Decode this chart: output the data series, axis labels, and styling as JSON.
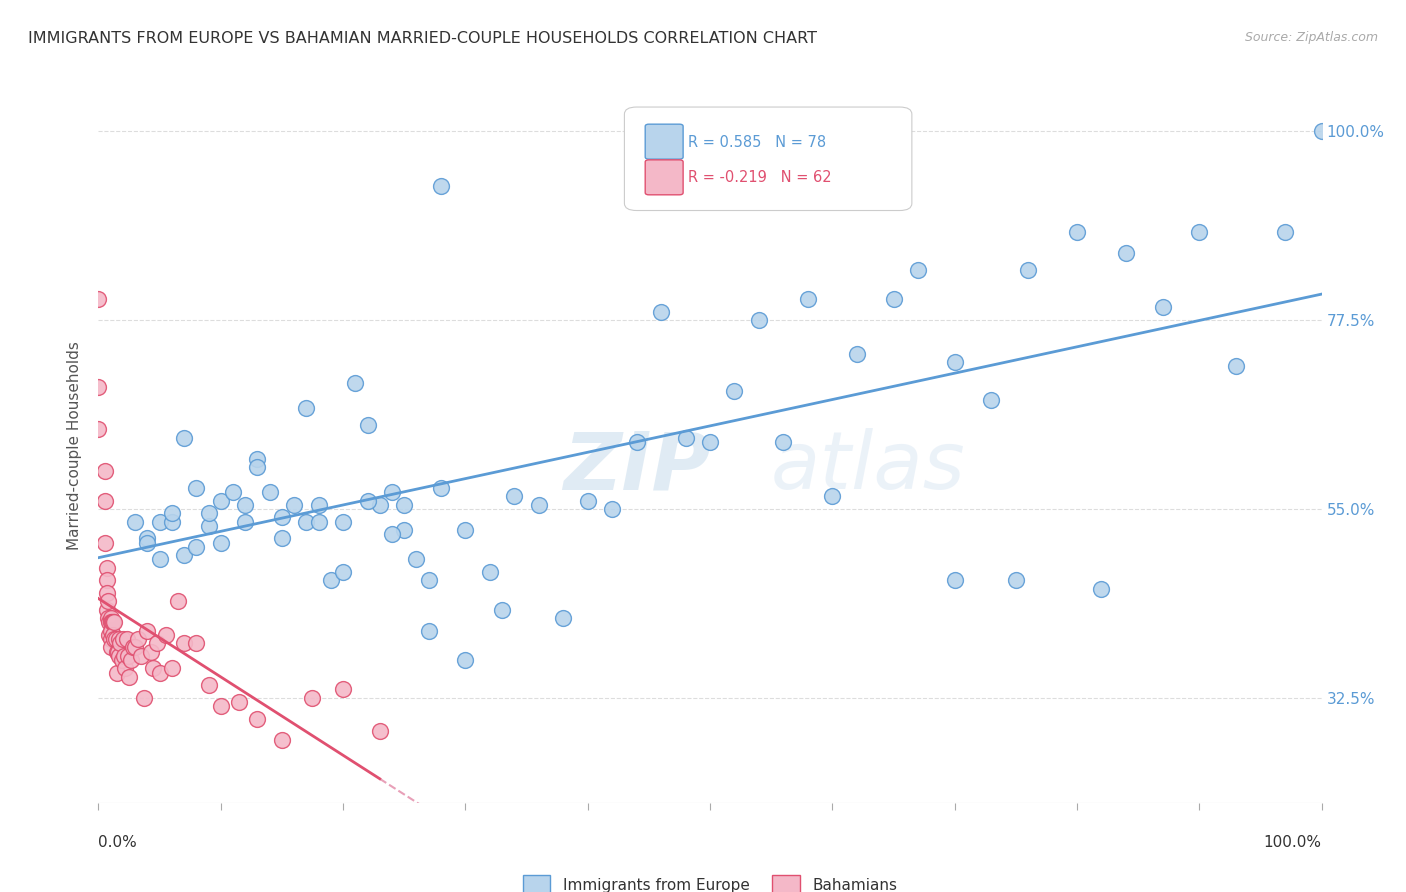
{
  "title": "IMMIGRANTS FROM EUROPE VS BAHAMIAN MARRIED-COUPLE HOUSEHOLDS CORRELATION CHART",
  "source": "Source: ZipAtlas.com",
  "ylabel": "Married-couple Households",
  "ytick_labels": [
    "100.0%",
    "77.5%",
    "55.0%",
    "32.5%"
  ],
  "ytick_values": [
    1.0,
    0.775,
    0.55,
    0.325
  ],
  "r_blue": 0.585,
  "n_blue": 78,
  "r_pink": -0.219,
  "n_pink": 62,
  "legend_blue": "Immigrants from Europe",
  "legend_pink": "Bahamians",
  "blue_color": "#b8d4ec",
  "blue_edge_color": "#5b9bd5",
  "pink_color": "#f4b8c8",
  "pink_edge_color": "#e05070",
  "watermark_zip": "ZIP",
  "watermark_atlas": "atlas",
  "background_color": "#ffffff",
  "grid_color": "#dddddd",
  "blue_scatter_x": [
    0.28,
    0.03,
    0.04,
    0.05,
    0.06,
    0.07,
    0.08,
    0.09,
    0.1,
    0.11,
    0.12,
    0.13,
    0.14,
    0.15,
    0.16,
    0.17,
    0.18,
    0.19,
    0.2,
    0.21,
    0.22,
    0.23,
    0.24,
    0.25,
    0.26,
    0.27,
    0.28,
    0.3,
    0.32,
    0.34,
    0.04,
    0.05,
    0.06,
    0.07,
    0.08,
    0.09,
    0.1,
    0.12,
    0.13,
    0.15,
    0.17,
    0.18,
    0.2,
    0.22,
    0.24,
    0.25,
    0.27,
    0.3,
    0.33,
    0.36,
    0.38,
    0.4,
    0.42,
    0.44,
    0.46,
    0.48,
    0.5,
    0.52,
    0.54,
    0.56,
    0.58,
    0.6,
    0.62,
    0.65,
    0.67,
    0.7,
    0.73,
    0.76,
    0.8,
    0.84,
    0.87,
    0.9,
    0.93,
    0.82,
    0.75,
    0.7,
    0.97,
    1.0
  ],
  "blue_scatter_y": [
    0.935,
    0.535,
    0.515,
    0.535,
    0.535,
    0.495,
    0.505,
    0.53,
    0.56,
    0.57,
    0.535,
    0.61,
    0.57,
    0.515,
    0.555,
    0.67,
    0.555,
    0.465,
    0.535,
    0.7,
    0.65,
    0.555,
    0.57,
    0.525,
    0.49,
    0.405,
    0.575,
    0.37,
    0.475,
    0.565,
    0.51,
    0.49,
    0.545,
    0.635,
    0.575,
    0.545,
    0.51,
    0.555,
    0.6,
    0.54,
    0.535,
    0.535,
    0.475,
    0.56,
    0.52,
    0.555,
    0.465,
    0.525,
    0.43,
    0.555,
    0.42,
    0.56,
    0.55,
    0.63,
    0.785,
    0.635,
    0.63,
    0.69,
    0.775,
    0.63,
    0.8,
    0.565,
    0.735,
    0.8,
    0.835,
    0.725,
    0.68,
    0.835,
    0.88,
    0.855,
    0.79,
    0.88,
    0.72,
    0.455,
    0.465,
    0.465,
    0.88,
    1.0
  ],
  "pink_scatter_x": [
    0.0,
    0.0,
    0.0,
    0.005,
    0.005,
    0.005,
    0.007,
    0.007,
    0.007,
    0.007,
    0.008,
    0.008,
    0.009,
    0.009,
    0.01,
    0.01,
    0.01,
    0.01,
    0.01,
    0.011,
    0.012,
    0.012,
    0.013,
    0.013,
    0.014,
    0.015,
    0.015,
    0.016,
    0.017,
    0.017,
    0.018,
    0.019,
    0.02,
    0.021,
    0.022,
    0.023,
    0.024,
    0.025,
    0.027,
    0.028,
    0.03,
    0.032,
    0.035,
    0.037,
    0.04,
    0.043,
    0.045,
    0.048,
    0.05,
    0.055,
    0.06,
    0.065,
    0.07,
    0.08,
    0.09,
    0.1,
    0.115,
    0.13,
    0.15,
    0.175,
    0.2,
    0.23
  ],
  "pink_scatter_y": [
    0.8,
    0.695,
    0.645,
    0.595,
    0.56,
    0.51,
    0.48,
    0.465,
    0.45,
    0.43,
    0.44,
    0.42,
    0.415,
    0.4,
    0.42,
    0.415,
    0.405,
    0.395,
    0.385,
    0.415,
    0.415,
    0.4,
    0.415,
    0.395,
    0.395,
    0.38,
    0.355,
    0.38,
    0.395,
    0.375,
    0.39,
    0.37,
    0.395,
    0.375,
    0.36,
    0.395,
    0.375,
    0.35,
    0.37,
    0.385,
    0.385,
    0.395,
    0.375,
    0.325,
    0.405,
    0.38,
    0.36,
    0.39,
    0.355,
    0.4,
    0.36,
    0.44,
    0.39,
    0.39,
    0.34,
    0.315,
    0.32,
    0.3,
    0.275,
    0.325,
    0.335,
    0.285
  ]
}
